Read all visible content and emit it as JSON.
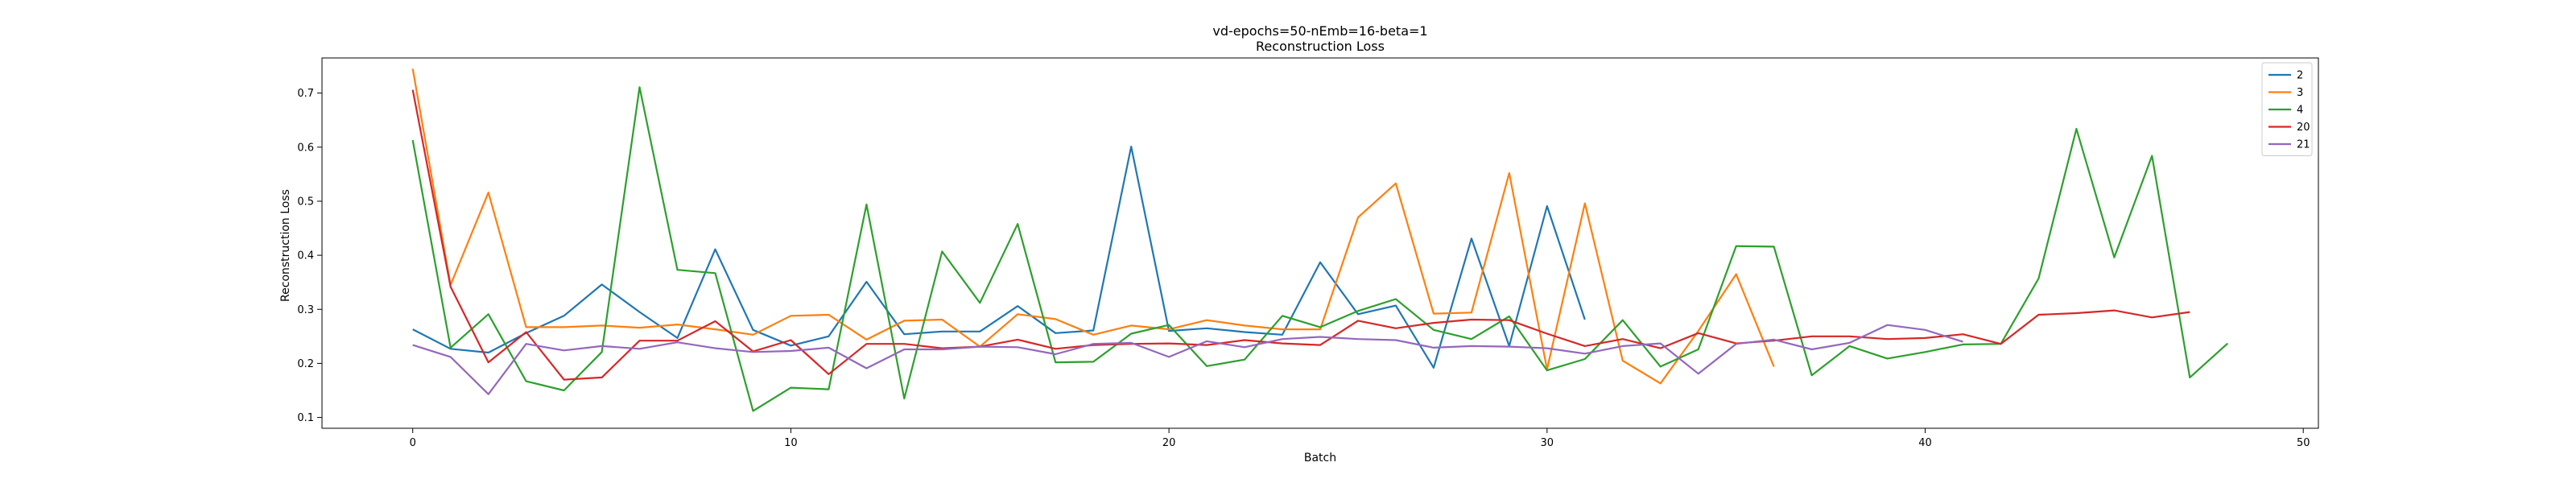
{
  "chart_data": {
    "type": "line",
    "title": "vd-epochs=50-nEmb=16-beta=1",
    "subtitle": "Reconstruction Loss",
    "xlabel": "Batch",
    "ylabel": "Reconstruction Loss",
    "xlim": [
      -2.4,
      50.4
    ],
    "ylim": [
      0.08,
      0.765
    ],
    "xticks": [
      0,
      10,
      20,
      30,
      40,
      50
    ],
    "yticks": [
      0.1,
      0.2,
      0.3,
      0.4,
      0.5,
      0.6,
      0.7
    ],
    "grid": false,
    "legend_position": "top-right",
    "series": [
      {
        "name": "2",
        "color": "#1f77b4",
        "x": [
          0,
          1,
          2,
          3,
          4,
          5,
          6,
          7,
          8,
          9,
          10,
          11,
          12,
          13,
          14,
          15,
          16,
          17,
          18,
          19,
          20,
          21,
          22,
          23,
          24,
          25,
          26,
          27,
          28,
          29,
          30,
          31
        ],
        "y": [
          0.263,
          0.227,
          0.22,
          0.256,
          0.288,
          0.346,
          0.295,
          0.247,
          0.411,
          0.262,
          0.233,
          0.25,
          0.351,
          0.254,
          0.259,
          0.259,
          0.306,
          0.256,
          0.261,
          0.601,
          0.26,
          0.265,
          0.258,
          0.253,
          0.387,
          0.291,
          0.307,
          0.192,
          0.431,
          0.232,
          0.491,
          0.281
        ]
      },
      {
        "name": "3",
        "color": "#ff7f0e",
        "x": [
          0,
          1,
          2,
          3,
          4,
          5,
          6,
          7,
          8,
          9,
          10,
          11,
          12,
          13,
          14,
          15,
          16,
          17,
          18,
          19,
          20,
          21,
          22,
          23,
          24,
          25,
          26,
          27,
          28,
          29,
          30,
          31,
          32,
          33,
          34,
          35,
          36
        ],
        "y": [
          0.745,
          0.345,
          0.516,
          0.267,
          0.267,
          0.27,
          0.266,
          0.272,
          0.263,
          0.253,
          0.288,
          0.29,
          0.244,
          0.279,
          0.281,
          0.231,
          0.291,
          0.282,
          0.253,
          0.27,
          0.263,
          0.28,
          0.27,
          0.263,
          0.263,
          0.47,
          0.533,
          0.292,
          0.294,
          0.552,
          0.189,
          0.496,
          0.205,
          0.163,
          0.26,
          0.365,
          0.194
        ]
      },
      {
        "name": "4",
        "color": "#2ca02c",
        "x": [
          0,
          1,
          2,
          3,
          4,
          5,
          6,
          7,
          8,
          9,
          10,
          11,
          12,
          13,
          14,
          15,
          16,
          17,
          18,
          19,
          20,
          21,
          22,
          23,
          24,
          25,
          26,
          27,
          28,
          29,
          30,
          31,
          32,
          33,
          34,
          35,
          36,
          37,
          38,
          39,
          40,
          41,
          42,
          43,
          44,
          45,
          46,
          47,
          48
        ],
        "y": [
          0.613,
          0.229,
          0.291,
          0.167,
          0.15,
          0.221,
          0.711,
          0.373,
          0.367,
          0.112,
          0.155,
          0.152,
          0.494,
          0.135,
          0.407,
          0.312,
          0.458,
          0.202,
          0.203,
          0.255,
          0.271,
          0.195,
          0.207,
          0.288,
          0.267,
          0.297,
          0.319,
          0.262,
          0.245,
          0.287,
          0.187,
          0.208,
          0.28,
          0.194,
          0.226,
          0.417,
          0.416,
          0.178,
          0.232,
          0.209,
          0.221,
          0.235,
          0.236,
          0.357,
          0.634,
          0.396,
          0.584,
          0.174,
          0.237
        ]
      },
      {
        "name": "20",
        "color": "#d62728",
        "x": [
          0,
          1,
          2,
          3,
          4,
          5,
          6,
          7,
          8,
          9,
          10,
          11,
          12,
          13,
          14,
          15,
          16,
          17,
          18,
          19,
          20,
          21,
          22,
          23,
          24,
          25,
          26,
          27,
          28,
          29,
          30,
          31,
          32,
          33,
          34,
          35,
          36,
          37,
          38,
          39,
          40,
          41,
          42,
          43,
          44,
          45,
          46,
          47
        ],
        "y": [
          0.706,
          0.342,
          0.202,
          0.258,
          0.17,
          0.174,
          0.242,
          0.242,
          0.278,
          0.222,
          0.243,
          0.18,
          0.236,
          0.236,
          0.228,
          0.231,
          0.244,
          0.227,
          0.234,
          0.236,
          0.237,
          0.234,
          0.243,
          0.237,
          0.234,
          0.279,
          0.265,
          0.275,
          0.281,
          0.28,
          0.255,
          0.232,
          0.245,
          0.228,
          0.256,
          0.237,
          0.242,
          0.25,
          0.25,
          0.245,
          0.247,
          0.254,
          0.236,
          0.29,
          0.293,
          0.298,
          0.285,
          0.295
        ]
      },
      {
        "name": "21",
        "color": "#9467bd",
        "x": [
          0,
          1,
          2,
          3,
          4,
          5,
          6,
          7,
          8,
          9,
          10,
          11,
          12,
          13,
          14,
          15,
          16,
          17,
          18,
          19,
          20,
          21,
          22,
          23,
          24,
          25,
          26,
          27,
          28,
          29,
          30,
          31,
          32,
          33,
          34,
          35,
          36,
          37,
          38,
          39,
          40,
          41
        ],
        "y": [
          0.234,
          0.212,
          0.143,
          0.236,
          0.224,
          0.232,
          0.227,
          0.239,
          0.228,
          0.221,
          0.223,
          0.229,
          0.191,
          0.226,
          0.226,
          0.231,
          0.23,
          0.217,
          0.236,
          0.238,
          0.212,
          0.241,
          0.23,
          0.245,
          0.249,
          0.245,
          0.243,
          0.229,
          0.232,
          0.231,
          0.228,
          0.218,
          0.232,
          0.237,
          0.181,
          0.236,
          0.244,
          0.226,
          0.238,
          0.271,
          0.262,
          0.24
        ]
      }
    ]
  }
}
